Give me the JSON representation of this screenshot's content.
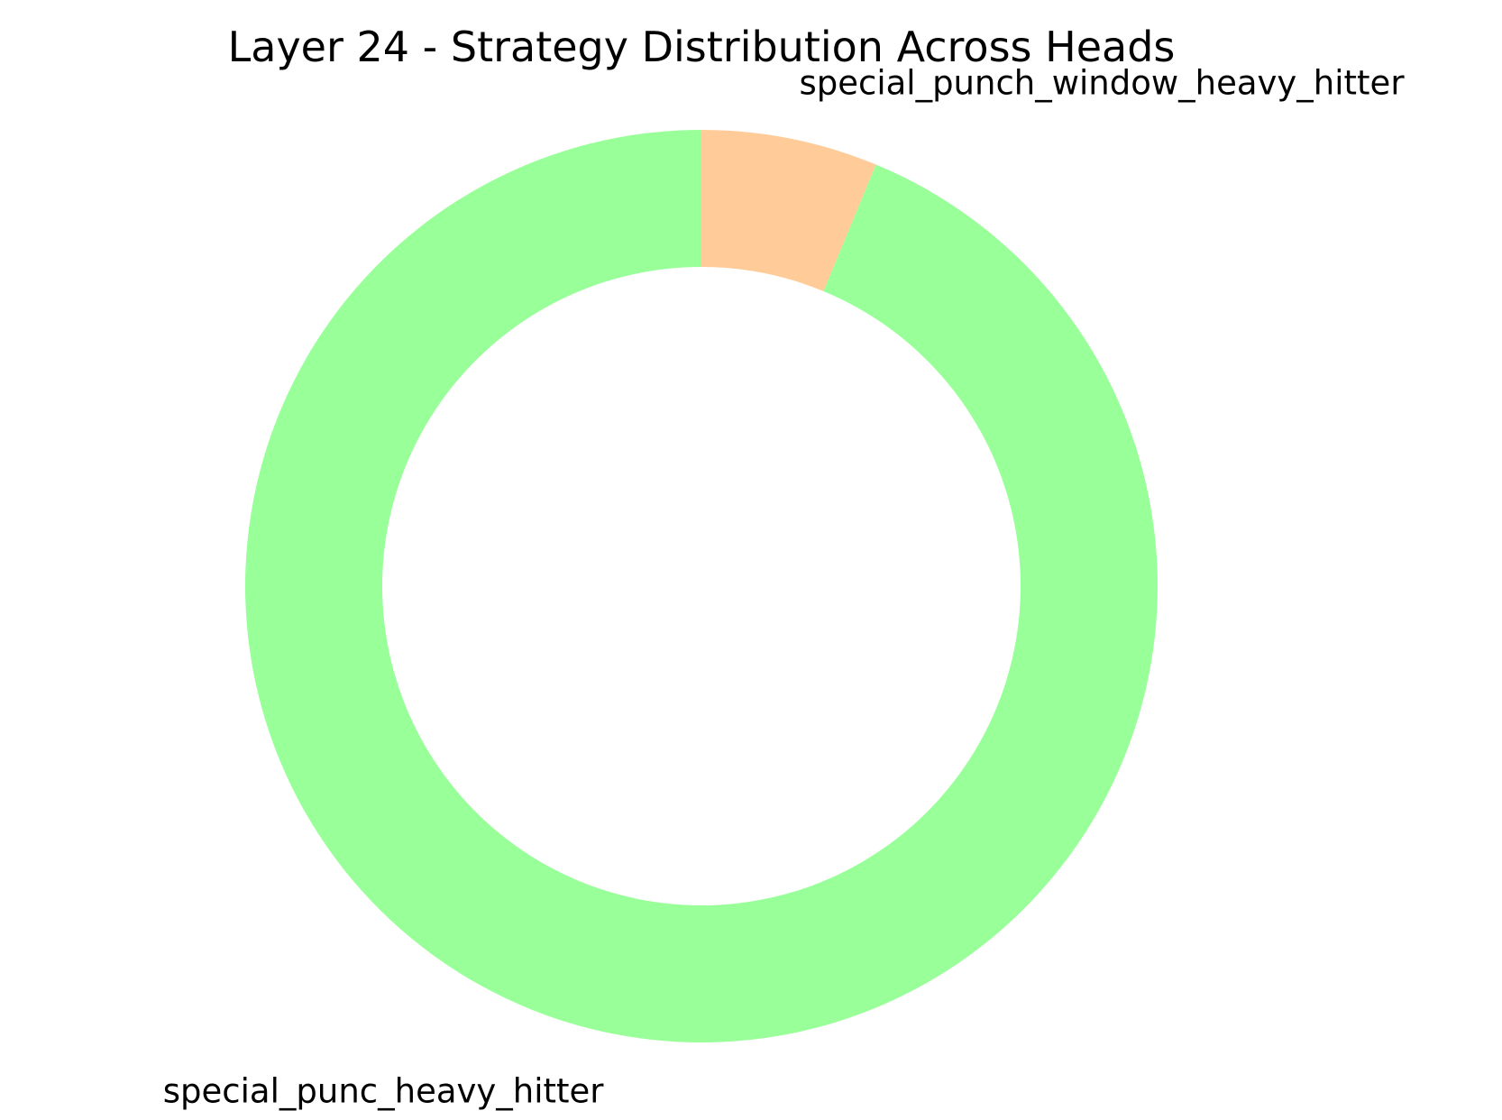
{
  "chart_data": {
    "type": "pie",
    "title": "Layer 24 - Strategy Distribution Across Heads",
    "donut": true,
    "start_angle_deg": 90,
    "direction": "clockwise",
    "slices": [
      {
        "label": "special_punch_window_heavy_hitter",
        "value": 1,
        "color": "#ffcc99"
      },
      {
        "label": "special_punc_heavy_hitter",
        "value": 15,
        "color": "#99ff99"
      }
    ]
  }
}
